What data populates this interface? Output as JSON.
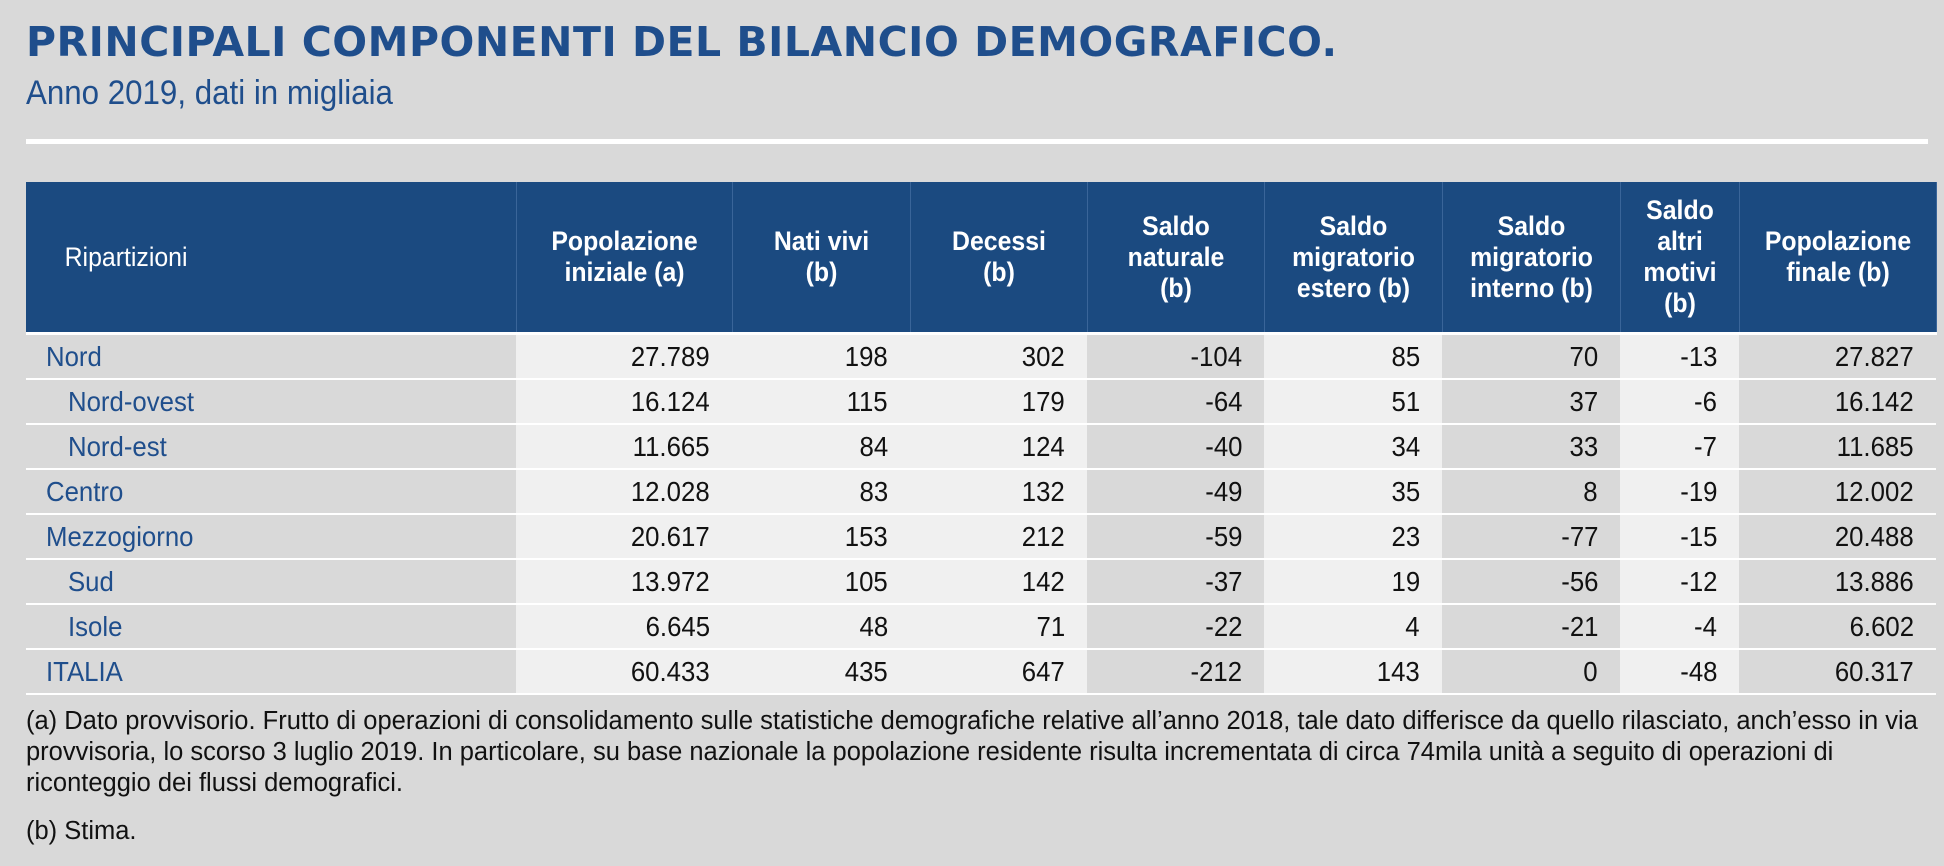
{
  "title": "PRINCIPALI COMPONENTI DEL BILANCIO DEMOGRAFICO.",
  "subtitle": "Anno 2019, dati in migliaia",
  "table": {
    "headers": [
      [
        "Ripartizioni"
      ],
      [
        "Popolazione",
        "iniziale (a)"
      ],
      [
        "Nati vivi",
        "(b)"
      ],
      [
        "Decessi",
        "(b)"
      ],
      [
        "Saldo",
        "naturale",
        "(b)"
      ],
      [
        "Saldo",
        "migratorio",
        "estero (b)"
      ],
      [
        "Saldo",
        "migratorio",
        "interno (b)"
      ],
      [
        "Saldo",
        "altri",
        "motivi",
        "(b)"
      ],
      [
        "Popolazione",
        "finale (b)"
      ]
    ],
    "rows": [
      {
        "name": "Nord",
        "sub": false,
        "values": [
          "27.789",
          "198",
          "302",
          "-104",
          "85",
          "70",
          "-13",
          "27.827"
        ]
      },
      {
        "name": "Nord-ovest",
        "sub": true,
        "values": [
          "16.124",
          "115",
          "179",
          "-64",
          "51",
          "37",
          "-6",
          "16.142"
        ]
      },
      {
        "name": "Nord-est",
        "sub": true,
        "values": [
          "11.665",
          "84",
          "124",
          "-40",
          "34",
          "33",
          "-7",
          "11.685"
        ]
      },
      {
        "name": "Centro",
        "sub": false,
        "values": [
          "12.028",
          "83",
          "132",
          "-49",
          "35",
          "8",
          "-19",
          "12.002"
        ]
      },
      {
        "name": "Mezzogiorno",
        "sub": false,
        "values": [
          "20.617",
          "153",
          "212",
          "-59",
          "23",
          "-77",
          "-15",
          "20.488"
        ]
      },
      {
        "name": "Sud",
        "sub": true,
        "values": [
          "13.972",
          "105",
          "142",
          "-37",
          "19",
          "-56",
          "-12",
          "13.886"
        ]
      },
      {
        "name": "Isole",
        "sub": true,
        "values": [
          "6.645",
          "48",
          "71",
          "-22",
          "4",
          "-21",
          "-4",
          "6.602"
        ]
      },
      {
        "name": "ITALIA",
        "sub": false,
        "values": [
          "60.433",
          "435",
          "647",
          "-212",
          "143",
          "0",
          "-48",
          "60.317"
        ]
      }
    ]
  },
  "notes": {
    "a": "(a) Dato provvisorio. Frutto di operazioni di consolidamento sulle statistiche demografiche relative all’anno 2018, tale dato differisce da quello rilasciato, anch’esso in via provvisoria, lo scorso 3 luglio 2019. In particolare, su base nazionale la popolazione residente risulta incrementata di circa 74mila unità a seguito di operazioni di riconteggio dei flussi demografici.",
    "b": "(b) Stima."
  },
  "colors": {
    "header_bg": "#1b4a80",
    "title": "#1f4e8c",
    "background": "#d9d9d9",
    "cell_light": "#f0f0f0"
  }
}
